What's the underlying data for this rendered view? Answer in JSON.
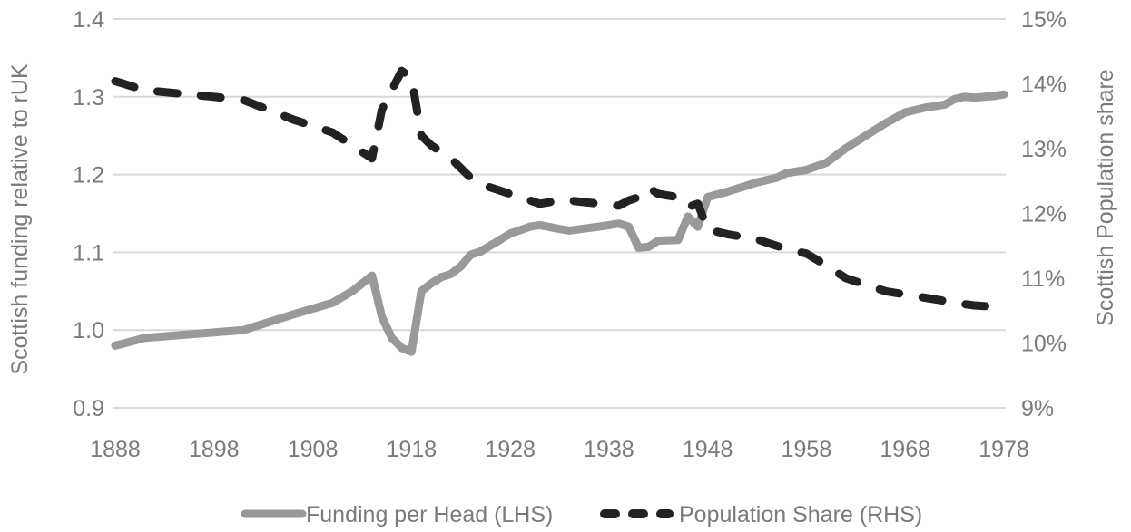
{
  "chart_data": {
    "type": "line",
    "title": "",
    "xlabel": "",
    "ylabel": "Scottish funding relative to rUK",
    "y2label": "Scottish Population share",
    "xlim": [
      1888,
      1978
    ],
    "ylim": [
      0.9,
      1.4
    ],
    "y2lim": [
      9,
      15
    ],
    "grid": true,
    "legend_position": "bottom",
    "x_ticks": [
      "1888",
      "1898",
      "1908",
      "1918",
      "1928",
      "1938",
      "1948",
      "1958",
      "1968",
      "1978"
    ],
    "y_ticks": [
      "0.9",
      "1.0",
      "1.1",
      "1.2",
      "1.3",
      "1.4"
    ],
    "y2_ticks": [
      "9%",
      "10%",
      "11%",
      "12%",
      "13%",
      "14%",
      "15%"
    ],
    "series": [
      {
        "name": "Funding per Head (LHS)",
        "axis": "left",
        "color": "#999999",
        "style": "solid",
        "x": [
          1888,
          1891,
          1898,
          1901,
          1906,
          1910,
          1912,
          1914,
          1915,
          1916,
          1917,
          1918,
          1919,
          1920,
          1921,
          1922,
          1923,
          1924,
          1925,
          1928,
          1930,
          1931,
          1933,
          1934,
          1937,
          1939,
          1940,
          1941,
          1942,
          1943,
          1945,
          1946,
          1947,
          1948,
          1950,
          1953,
          1955,
          1956,
          1958,
          1960,
          1962,
          1964,
          1966,
          1968,
          1970,
          1972,
          1973,
          1974,
          1975,
          1976,
          1977,
          1978
        ],
        "values": [
          0.98,
          0.99,
          0.997,
          1.0,
          1.02,
          1.035,
          1.05,
          1.07,
          1.017,
          0.99,
          0.977,
          0.972,
          1.05,
          1.06,
          1.068,
          1.072,
          1.082,
          1.097,
          1.101,
          1.124,
          1.133,
          1.135,
          1.13,
          1.128,
          1.133,
          1.137,
          1.133,
          1.106,
          1.107,
          1.115,
          1.116,
          1.146,
          1.133,
          1.171,
          1.178,
          1.19,
          1.196,
          1.202,
          1.206,
          1.215,
          1.234,
          1.25,
          1.266,
          1.28,
          1.286,
          1.29,
          1.297,
          1.3,
          1.299,
          1.3,
          1.301,
          1.303
        ],
        "values_approximate": true
      },
      {
        "name": "Population Share (RHS)",
        "axis": "right",
        "color": "#222222",
        "style": "dashed",
        "x": [
          1888,
          1891,
          1898,
          1901,
          1906,
          1910,
          1912,
          1914,
          1915,
          1916,
          1917,
          1918,
          1919,
          1920,
          1921,
          1922,
          1923,
          1924,
          1925,
          1928,
          1930,
          1931,
          1933,
          1934,
          1937,
          1939,
          1940,
          1941,
          1942,
          1943,
          1945,
          1946,
          1947,
          1948,
          1950,
          1953,
          1955,
          1956,
          1958,
          1960,
          1962,
          1964,
          1966,
          1968,
          1970,
          1972,
          1973,
          1974,
          1975,
          1976,
          1977,
          1978
        ],
        "values": [
          14.04,
          13.9,
          13.8,
          13.75,
          13.45,
          13.25,
          13.05,
          12.85,
          13.6,
          13.9,
          14.2,
          14.1,
          13.2,
          13.05,
          12.95,
          12.85,
          12.7,
          12.55,
          12.45,
          12.3,
          12.2,
          12.15,
          12.2,
          12.2,
          12.15,
          12.12,
          12.2,
          12.25,
          12.4,
          12.3,
          12.25,
          12.1,
          12.15,
          11.75,
          11.68,
          11.6,
          11.5,
          11.45,
          11.38,
          11.2,
          11.0,
          10.9,
          10.8,
          10.75,
          10.7,
          10.65,
          10.62,
          10.6,
          10.58,
          10.57,
          10.57,
          10.56
        ],
        "values_approximate": true
      }
    ]
  },
  "legend": {
    "items": [
      {
        "label": "Funding per Head (LHS)",
        "color": "#999999",
        "style": "solid"
      },
      {
        "label": "Population Share (RHS)",
        "color": "#222222",
        "style": "dashed"
      }
    ]
  }
}
